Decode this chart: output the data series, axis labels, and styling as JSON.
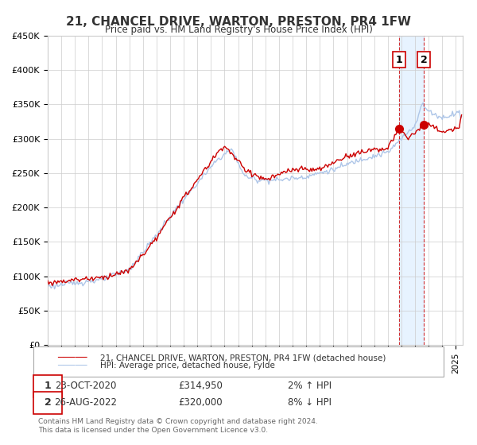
{
  "title": "21, CHANCEL DRIVE, WARTON, PRESTON, PR4 1FW",
  "subtitle": "Price paid vs. HM Land Registry's House Price Index (HPI)",
  "ylabel": "",
  "ylim": [
    0,
    450000
  ],
  "yticks": [
    0,
    50000,
    100000,
    150000,
    200000,
    250000,
    300000,
    350000,
    400000,
    450000
  ],
  "ytick_labels": [
    "£0",
    "£50K",
    "£100K",
    "£150K",
    "£200K",
    "£250K",
    "£300K",
    "£350K",
    "£400K",
    "£450K"
  ],
  "xlim_start": 1995.0,
  "xlim_end": 2025.5,
  "hpi_color": "#aec6e8",
  "price_color": "#cc0000",
  "marker_color": "#cc0000",
  "background_color": "#ffffff",
  "plot_bg_color": "#ffffff",
  "grid_color": "#cccccc",
  "legend_label_price": "21, CHANCEL DRIVE, WARTON, PRESTON, PR4 1FW (detached house)",
  "legend_label_hpi": "HPI: Average price, detached house, Fylde",
  "event1_date": 2020.81,
  "event1_price": 314950,
  "event1_label": "1",
  "event1_text": "23-OCT-2020",
  "event1_amount": "£314,950",
  "event1_pct": "2% ↑ HPI",
  "event2_date": 2022.65,
  "event2_price": 320000,
  "event2_label": "2",
  "event2_text": "26-AUG-2022",
  "event2_amount": "£320,000",
  "event2_pct": "8% ↓ HPI",
  "shade_start": 2020.81,
  "shade_end": 2022.65,
  "footer": "Contains HM Land Registry data © Crown copyright and database right 2024.\nThis data is licensed under the Open Government Licence v3.0."
}
